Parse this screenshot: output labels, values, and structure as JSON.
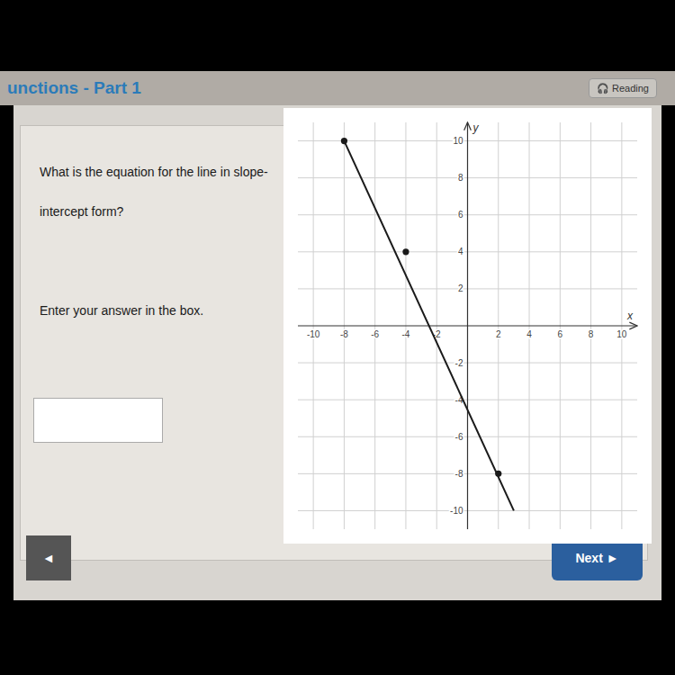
{
  "chart_data": {
    "type": "line",
    "annotations": [
      "unctions - Part 1",
      "🎧 Reading",
      "What is the equation for the line in slope-",
      "intercept form?",
      "Enter your answer in the box.",
      "◄",
      "Next ►"
    ],
    "xlabel": "x",
    "ylabel": "y",
    "xlim": [
      -11,
      11
    ],
    "ylim": [
      -11,
      11
    ],
    "xticks": [
      -10,
      -8,
      -6,
      -4,
      -2,
      2,
      4,
      6,
      8,
      10
    ],
    "yticks": [
      -10,
      -8,
      -6,
      -4,
      -2,
      2,
      4,
      6,
      8,
      10
    ],
    "grid": true,
    "series": [
      {
        "type": "line",
        "x": [
          -8,
          3
        ],
        "values": [
          10,
          -10
        ],
        "color": "#1a1a1a"
      },
      {
        "type": "scatter",
        "x": [
          -8,
          -4,
          2
        ],
        "values": [
          10,
          4,
          -8
        ],
        "color": "#1a1a1a",
        "marker": "circle"
      }
    ]
  }
}
